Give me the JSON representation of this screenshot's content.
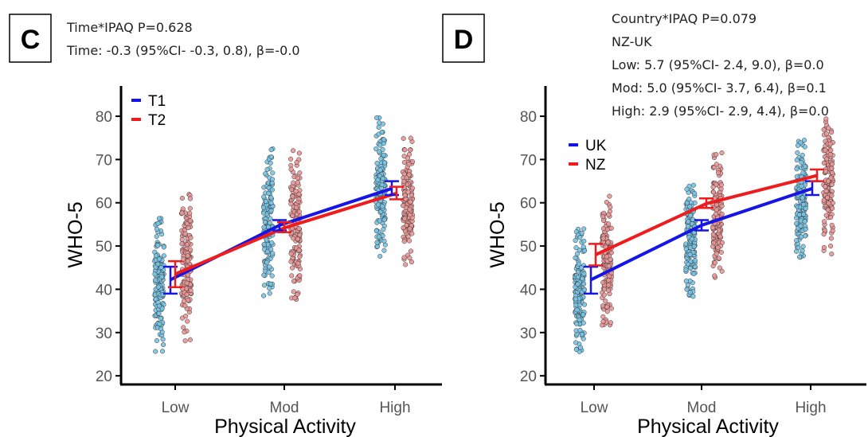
{
  "panels": [
    {
      "letter": "C",
      "annotations": [
        "Time*IPAQ  P=0.628",
        "Time: -0.3 (95%CI- -0.3, 0.8), β=-0.0"
      ],
      "chart_data": {
        "type": "line",
        "categories": [
          "Low",
          "Mod",
          "High"
        ],
        "xlabel": "Physical Activity",
        "ylabel": "WHO-5",
        "ylim": [
          18,
          87
        ],
        "yticks": [
          20,
          30,
          40,
          50,
          60,
          70,
          80
        ],
        "legend_position": "top-left",
        "grid": false,
        "series": [
          {
            "name": "T1",
            "color": "#1515e6",
            "values": [
              42.2,
              54.8,
              63.3
            ],
            "ci_low": [
              39.0,
              53.6,
              61.8
            ],
            "ci_high": [
              45.2,
              56.0,
              65.0
            ],
            "point_color": "#78c4e6",
            "point_ranges": [
              [
                25.5,
                56.5
              ],
              [
                38.5,
                73.5
              ],
              [
                47.5,
                80.0
              ]
            ]
          },
          {
            "name": "T2",
            "color": "#ee1c1c",
            "values": [
              43.5,
              54.2,
              62.2
            ],
            "ci_low": [
              40.5,
              53.2,
              60.8
            ],
            "ci_high": [
              46.5,
              55.5,
              63.7
            ],
            "point_color": "#eb9696",
            "point_ranges": [
              [
                27.0,
                62.5
              ],
              [
                37.5,
                73.0
              ],
              [
                45.5,
                75.0
              ]
            ]
          }
        ]
      }
    },
    {
      "letter": "D",
      "annotations": [
        "Country*IPAQ  P=0.079",
        "NZ-UK",
        "Low: 5.7 (95%CI- 2.4, 9.0), β=0.0",
        "Mod: 5.0 (95%CI- 3.7, 6.4), β=0.1",
        "High: 2.9 (95%CI- 2.9, 4.4), β=0.0"
      ],
      "chart_data": {
        "type": "line",
        "categories": [
          "Low",
          "Mod",
          "High"
        ],
        "xlabel": "Physical Activity",
        "ylabel": "WHO-5",
        "ylim": [
          18,
          87
        ],
        "yticks": [
          20,
          30,
          40,
          50,
          60,
          70,
          80
        ],
        "legend_position": "top-left",
        "grid": false,
        "series": [
          {
            "name": "UK",
            "color": "#1515e6",
            "values": [
              42.2,
              54.8,
              63.3
            ],
            "ci_low": [
              39.0,
              53.6,
              61.8
            ],
            "ci_high": [
              45.2,
              56.0,
              65.0
            ],
            "point_color": "#78c4e6",
            "point_ranges": [
              [
                25.5,
                54.0
              ],
              [
                38.0,
                65.0
              ],
              [
                45.5,
                75.5
              ]
            ]
          },
          {
            "name": "NZ",
            "color": "#ee1c1c",
            "values": [
              48.0,
              59.8,
              66.3
            ],
            "ci_low": [
              45.5,
              58.8,
              65.0
            ],
            "ci_high": [
              50.5,
              61.0,
              67.7
            ],
            "point_color": "#eb9696",
            "point_ranges": [
              [
                31.5,
                63.0
              ],
              [
                42.5,
                73.0
              ],
              [
                48.0,
                80.0
              ]
            ]
          }
        ]
      }
    }
  ]
}
